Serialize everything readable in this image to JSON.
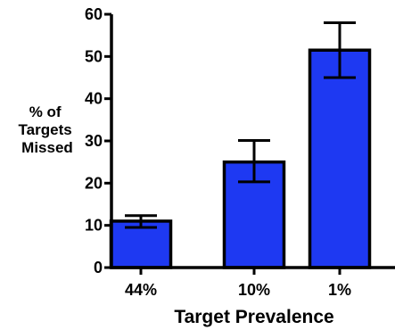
{
  "chart_data": {
    "type": "bar",
    "title": "",
    "categories": [
      "44%",
      "10%",
      "1%"
    ],
    "values": [
      11,
      25,
      51.5
    ],
    "error_bars": [
      {
        "low": 9.5,
        "high": 12.3
      },
      {
        "low": 20.3,
        "high": 30.1
      },
      {
        "low": 45,
        "high": 58
      }
    ],
    "xlabel": "Target Prevalence",
    "ylabel_lines": [
      "% of",
      "Targets",
      "Missed"
    ],
    "ylim": [
      0,
      60
    ],
    "yticks": [
      "0",
      "10",
      "20",
      "30",
      "40",
      "50",
      "60"
    ],
    "grid": false,
    "bar_color": "#1E39F2",
    "edge_color": "#000000"
  }
}
